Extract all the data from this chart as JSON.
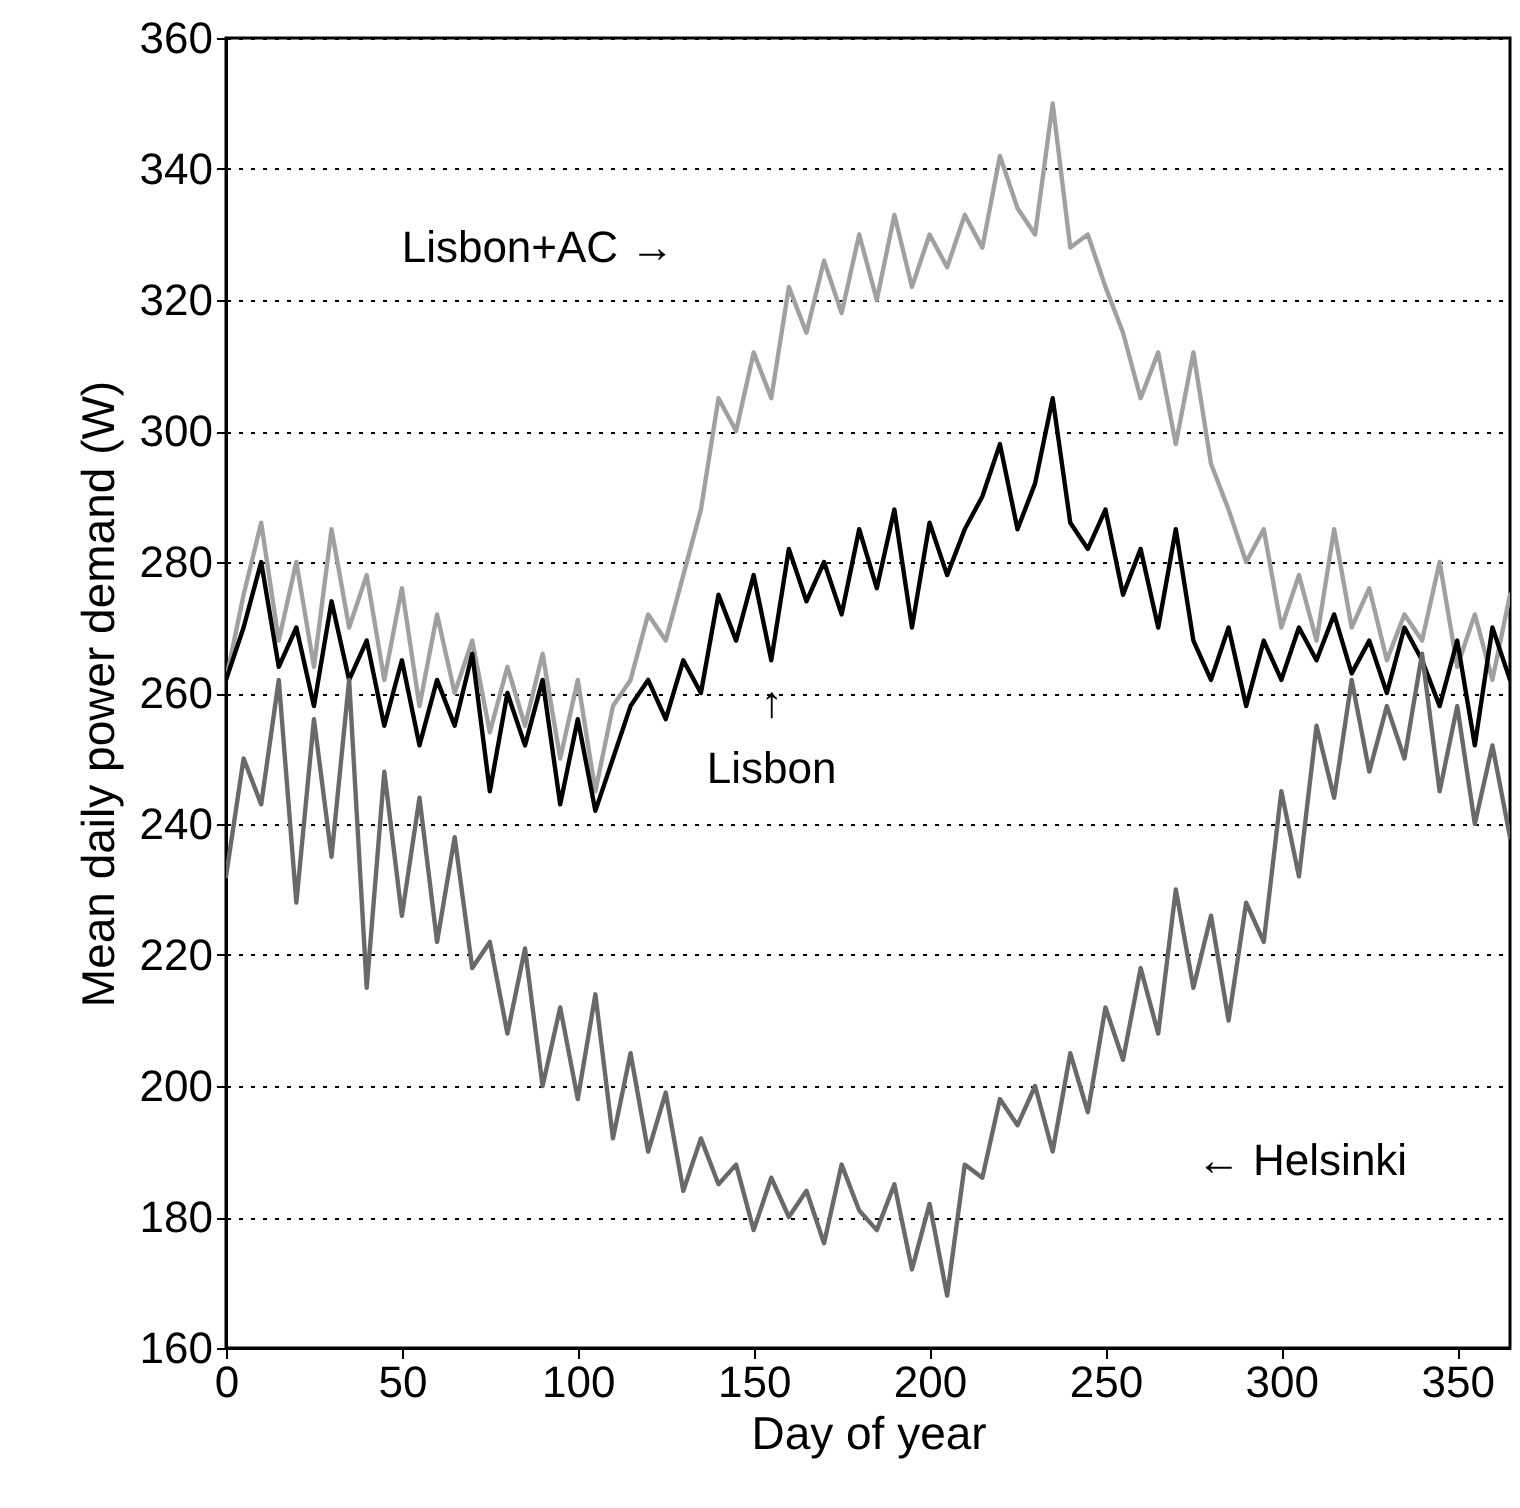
{
  "chart_data": {
    "type": "line",
    "xlabel": "Day of year",
    "ylabel": "Mean daily power demand (W)",
    "x": [
      0,
      5,
      10,
      15,
      20,
      25,
      30,
      35,
      40,
      45,
      50,
      55,
      60,
      65,
      70,
      75,
      80,
      85,
      90,
      95,
      100,
      105,
      110,
      115,
      120,
      125,
      130,
      135,
      140,
      145,
      150,
      155,
      160,
      165,
      170,
      175,
      180,
      185,
      190,
      195,
      200,
      205,
      210,
      215,
      220,
      225,
      230,
      235,
      240,
      245,
      250,
      255,
      260,
      265,
      270,
      275,
      280,
      285,
      290,
      295,
      300,
      305,
      310,
      315,
      320,
      325,
      330,
      335,
      340,
      345,
      350,
      355,
      360,
      365
    ],
    "series": [
      {
        "color": "#a0a0a0",
        "values": [
          262,
          275,
          286,
          268,
          280,
          264,
          285,
          270,
          278,
          262,
          276,
          258,
          272,
          260,
          268,
          254,
          264,
          255,
          266,
          250,
          262,
          245,
          258,
          262,
          272,
          268,
          278,
          288,
          305,
          300,
          312,
          305,
          322,
          315,
          326,
          318,
          330,
          320,
          333,
          322,
          330,
          325,
          333,
          328,
          342,
          334,
          330,
          350,
          328,
          330,
          322,
          315,
          305,
          312,
          298,
          312,
          295,
          288,
          280,
          285,
          270,
          278,
          268,
          285,
          270,
          276,
          265,
          272,
          268,
          280,
          264,
          272,
          262,
          275
        ]
      },
      {
        "color": "#000000",
        "values": [
          262,
          270,
          280,
          264,
          270,
          258,
          274,
          262,
          268,
          255,
          265,
          252,
          262,
          255,
          266,
          245,
          260,
          252,
          262,
          243,
          256,
          242,
          250,
          258,
          262,
          256,
          265,
          260,
          275,
          268,
          278,
          265,
          282,
          274,
          280,
          272,
          285,
          276,
          288,
          270,
          286,
          278,
          285,
          290,
          298,
          285,
          292,
          305,
          286,
          282,
          288,
          275,
          282,
          270,
          285,
          268,
          262,
          270,
          258,
          268,
          262,
          270,
          265,
          272,
          263,
          268,
          260,
          270,
          265,
          258,
          268,
          252,
          270,
          262
        ]
      },
      {
        "color": "#696969",
        "values": [
          232,
          250,
          243,
          262,
          228,
          256,
          235,
          262,
          215,
          248,
          226,
          244,
          222,
          238,
          218,
          222,
          208,
          221,
          200,
          212,
          198,
          214,
          192,
          205,
          190,
          199,
          184,
          192,
          185,
          188,
          178,
          186,
          180,
          184,
          176,
          188,
          181,
          178,
          185,
          172,
          182,
          168,
          188,
          186,
          198,
          194,
          200,
          190,
          205,
          196,
          212,
          204,
          218,
          208,
          230,
          215,
          226,
          210,
          228,
          222,
          245,
          232,
          255,
          244,
          262,
          248,
          258,
          250,
          266,
          245,
          258,
          240,
          252,
          238
        ]
      }
    ],
    "xlim": [
      0,
      365
    ],
    "xticks": [
      0,
      50,
      100,
      150,
      200,
      250,
      300,
      350
    ],
    "ylim": [
      160,
      360
    ],
    "yticks": [
      160,
      180,
      200,
      220,
      240,
      260,
      280,
      300,
      320,
      340,
      360
    ],
    "grid": "y",
    "annotations": [
      "Lisbon+AC →",
      "↑",
      "Lisbon",
      "← Helsinki"
    ]
  }
}
